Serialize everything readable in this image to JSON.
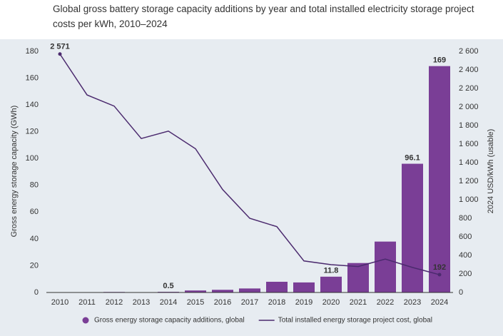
{
  "chart_data": {
    "type": "combo",
    "title": "Global gross battery storage capacity additions by year and total installed electricity storage project costs per kWh, 2010–2024",
    "y_label": "Gross energy storage capacity (GWh)",
    "y2_label": "2024 USD/kWh (usable)",
    "categories": [
      "2010",
      "2011",
      "2012",
      "2013",
      "2014",
      "2015",
      "2016",
      "2017",
      "2018",
      "2019",
      "2020",
      "2021",
      "2022",
      "2023",
      "2024"
    ],
    "series": [
      {
        "name": "Gross energy storage capacity additions, global",
        "type": "bar",
        "color": "#7a3e96",
        "values": [
          0.05,
          0.1,
          0.4,
          0.2,
          0.5,
          1.5,
          2,
          3,
          8,
          7.5,
          11.8,
          22,
          38,
          96.1,
          169
        ],
        "value_labels": [
          null,
          null,
          null,
          null,
          "0.5",
          null,
          null,
          null,
          null,
          null,
          "11.8",
          null,
          null,
          "96.1",
          "169"
        ]
      },
      {
        "name": "Total installed energy storage project cost, global",
        "type": "line",
        "axis": "y2",
        "color": "#4b2a6e",
        "values": [
          2571,
          2130,
          2010,
          1660,
          1740,
          1550,
          1110,
          800,
          710,
          340,
          300,
          280,
          360,
          270,
          192
        ],
        "value_labels": [
          "2 571",
          null,
          null,
          null,
          null,
          null,
          null,
          null,
          null,
          null,
          null,
          null,
          null,
          null,
          "192"
        ]
      }
    ],
    "ylim": [
      0,
      180
    ],
    "yticks": [
      0,
      20,
      40,
      60,
      80,
      100,
      120,
      140,
      160,
      180
    ],
    "y2lim": [
      0,
      2600
    ],
    "y2ticks": [
      0,
      200,
      400,
      600,
      800,
      {
        "value": 1000,
        "label": "1 000"
      },
      {
        "value": 1200,
        "label": "1 200"
      },
      {
        "value": 1400,
        "label": "1 400"
      },
      {
        "value": 1600,
        "label": "1 600"
      },
      {
        "value": 1800,
        "label": "1 800"
      },
      {
        "value": 2000,
        "label": "2 000"
      },
      {
        "value": 2200,
        "label": "2 200"
      },
      {
        "value": 2400,
        "label": "2 400"
      },
      {
        "value": 2600,
        "label": "2 600"
      }
    ],
    "grid": false,
    "legend": "bottom"
  }
}
